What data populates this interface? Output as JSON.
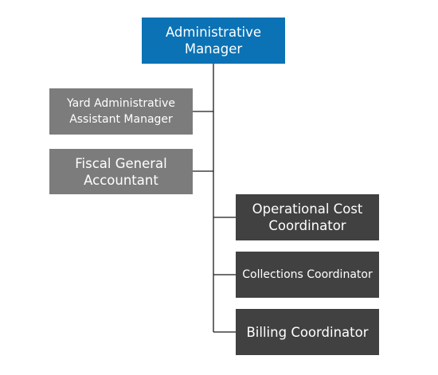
{
  "colors": {
    "blue": "#0b72b5",
    "gray": "#7c7c7c",
    "dark": "#414141",
    "line": "#1a1a1a"
  },
  "org_chart": {
    "root": {
      "label": "Administrative Manager"
    },
    "left_reports": [
      {
        "label": "Yard Administrative Assistant Manager"
      },
      {
        "label": "Fiscal General Accountant"
      }
    ],
    "right_reports": [
      {
        "label": "Operational Cost Coordinator"
      },
      {
        "label": "Collections Coordinator"
      },
      {
        "label": "Billing Coordinator"
      }
    ]
  }
}
